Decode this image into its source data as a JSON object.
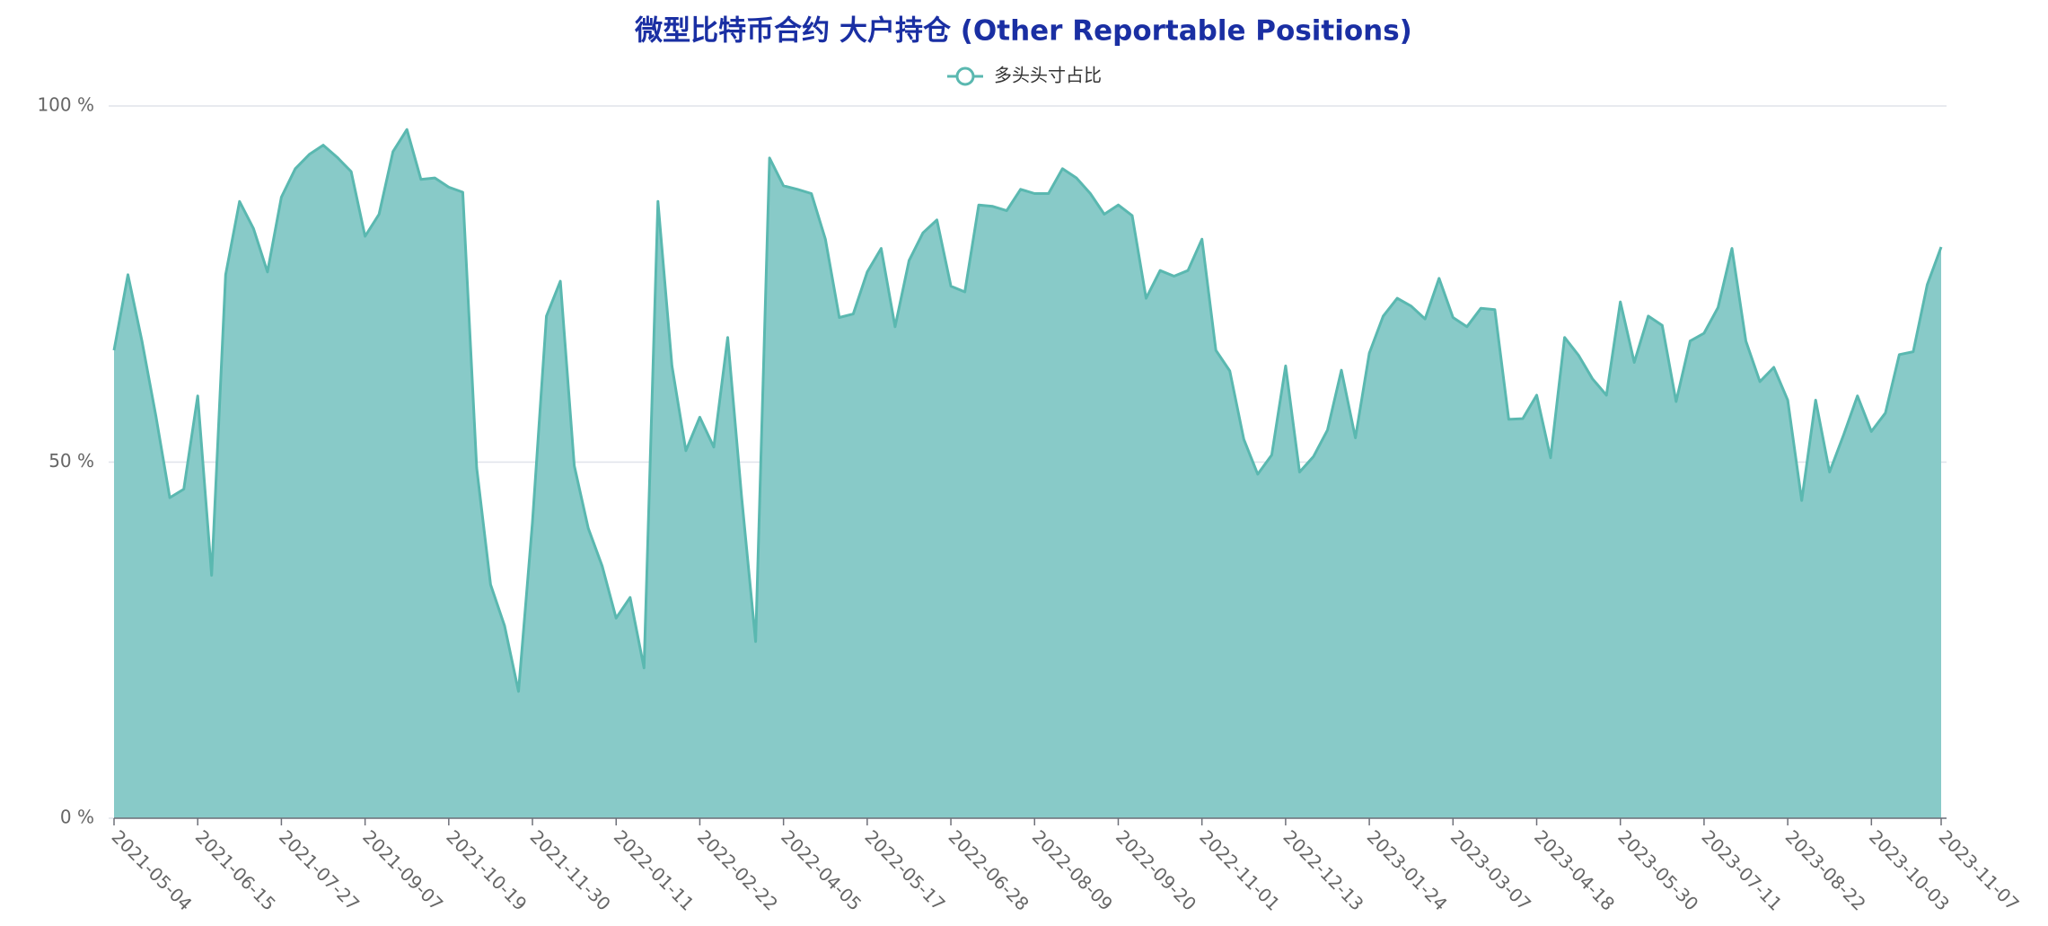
{
  "chart_data": {
    "type": "area",
    "title": "微型比特币合约 大户持仓 (Other Reportable Positions)",
    "categories": [
      "2021-05-04",
      null,
      null,
      null,
      null,
      null,
      "2021-06-15",
      null,
      null,
      null,
      null,
      null,
      "2021-07-27",
      null,
      null,
      null,
      null,
      null,
      "2021-09-07",
      null,
      null,
      null,
      null,
      null,
      "2021-10-19",
      null,
      null,
      null,
      null,
      null,
      "2021-11-30",
      null,
      null,
      null,
      null,
      null,
      "2022-01-11",
      null,
      null,
      null,
      null,
      null,
      "2022-02-22",
      null,
      null,
      null,
      null,
      null,
      "2022-04-05",
      null,
      null,
      null,
      null,
      null,
      "2022-05-17",
      null,
      null,
      null,
      null,
      null,
      "2022-06-28",
      null,
      null,
      null,
      null,
      null,
      "2022-08-09",
      null,
      null,
      null,
      null,
      null,
      "2022-09-20",
      null,
      null,
      null,
      null,
      null,
      "2022-11-01",
      null,
      null,
      null,
      null,
      null,
      "2022-12-13",
      null,
      null,
      null,
      null,
      null,
      "2023-01-24",
      null,
      null,
      null,
      null,
      null,
      "2023-03-07",
      null,
      null,
      null,
      null,
      null,
      "2023-04-18",
      null,
      null,
      null,
      null,
      null,
      "2023-05-30",
      null,
      null,
      null,
      null,
      null,
      "2023-07-11",
      null,
      null,
      null,
      null,
      null,
      "2023-08-22",
      null,
      null,
      null,
      null,
      null,
      "2023-10-03",
      null,
      null,
      null,
      null,
      "2023-11-07"
    ],
    "series": [
      {
        "name": "多头头寸占比",
        "color": "#5ab8b0",
        "fill": "#88cac8",
        "values": [
          65.7,
          76.3,
          67,
          56.5,
          45,
          46.2,
          59.3,
          34.1,
          76.3,
          86.6,
          82.8,
          76.7,
          87.2,
          91.2,
          93.2,
          94.5,
          92.8,
          90.8,
          81.7,
          84.8,
          93.6,
          96.7,
          89.7,
          89.9,
          88.6,
          87.9,
          49.2,
          32.8,
          27,
          17.8,
          41.5,
          70.5,
          75.4,
          49.5,
          40.7,
          35.4,
          28.1,
          31,
          21.1,
          86.6,
          63.5,
          51.6,
          56.3,
          52.1,
          67.5,
          45.1,
          24.8,
          92.7,
          88.8,
          88.3,
          87.7,
          81.3,
          70.3,
          70.8,
          76.7,
          80,
          69,
          78.3,
          82.2,
          84,
          74.7,
          73.9,
          86.1,
          85.9,
          85.3,
          88.3,
          87.7,
          87.7,
          91.2,
          89.9,
          87.7,
          84.8,
          86.1,
          84.6,
          73,
          76.9,
          76.1,
          76.9,
          81.3,
          65.7,
          62.8,
          53.2,
          48.3,
          51,
          63.5,
          48.6,
          50.8,
          54.5,
          62.9,
          53.4,
          65.3,
          70.5,
          73,
          71.9,
          70.1,
          75.8,
          70.3,
          69,
          71.6,
          71.4,
          56,
          56.1,
          59.4,
          50.6,
          67.5,
          65,
          61.7,
          59.4,
          72.5,
          64,
          70.5,
          69.2,
          58.5,
          67,
          68.1,
          71.7,
          80,
          67,
          61.3,
          63.3,
          58.7,
          44.6,
          58.7,
          48.6,
          53.8,
          59.3,
          54.3,
          56.9,
          65.1,
          65.5,
          74.9,
          80.2
        ]
      }
    ],
    "ylim": [
      0,
      100
    ],
    "yticks": [
      {
        "value": 0,
        "label": "0 %"
      },
      {
        "value": 50,
        "label": "50 %"
      },
      {
        "value": 100,
        "label": "100 %"
      }
    ],
    "grid": true,
    "legend": "top"
  }
}
